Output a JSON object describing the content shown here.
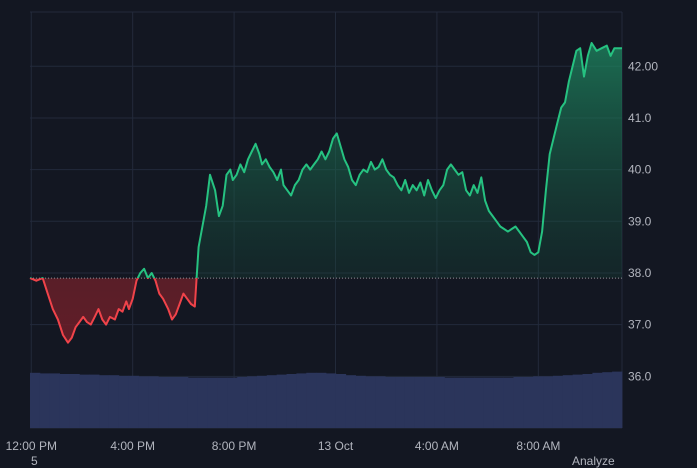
{
  "chart_data": {
    "type": "area",
    "baseline": 37.9,
    "ylim": [
      35.0,
      43.05
    ],
    "y_ticks": [
      "42.00",
      "41.0",
      "40.0",
      "39.0",
      "38.0",
      "37.0",
      "36.0"
    ],
    "y_tick_values": [
      42.0,
      41.0,
      40.0,
      39.0,
      38.0,
      37.0,
      36.0
    ],
    "x_ticks": [
      "12:00 PM",
      "4:00 PM",
      "8:00 PM",
      "13 Oct",
      "4:00 AM",
      "8:00 AM"
    ],
    "x_tick_hours": [
      12,
      16,
      20,
      24,
      28,
      32
    ],
    "x_range_hours": [
      11.95,
      35.3
    ],
    "series": [
      {
        "values": [
          [
            11.95,
            37.9
          ],
          [
            12.2,
            37.85
          ],
          [
            12.45,
            37.9
          ],
          [
            12.65,
            37.6
          ],
          [
            12.85,
            37.3
          ],
          [
            13.05,
            37.1
          ],
          [
            13.25,
            36.8
          ],
          [
            13.45,
            36.65
          ],
          [
            13.6,
            36.75
          ],
          [
            13.75,
            36.95
          ],
          [
            13.9,
            37.05
          ],
          [
            14.05,
            37.15
          ],
          [
            14.2,
            37.05
          ],
          [
            14.35,
            37.0
          ],
          [
            14.5,
            37.15
          ],
          [
            14.65,
            37.3
          ],
          [
            14.8,
            37.1
          ],
          [
            14.95,
            37.0
          ],
          [
            15.1,
            37.15
          ],
          [
            15.3,
            37.1
          ],
          [
            15.45,
            37.3
          ],
          [
            15.6,
            37.25
          ],
          [
            15.75,
            37.45
          ],
          [
            15.85,
            37.3
          ],
          [
            16.0,
            37.5
          ],
          [
            16.15,
            37.85
          ],
          [
            16.3,
            38.0
          ],
          [
            16.45,
            38.08
          ],
          [
            16.6,
            37.9
          ],
          [
            16.75,
            38.0
          ],
          [
            16.9,
            37.85
          ],
          [
            17.05,
            37.6
          ],
          [
            17.2,
            37.5
          ],
          [
            17.4,
            37.3
          ],
          [
            17.55,
            37.1
          ],
          [
            17.7,
            37.2
          ],
          [
            17.85,
            37.4
          ],
          [
            18.0,
            37.6
          ],
          [
            18.15,
            37.5
          ],
          [
            18.3,
            37.4
          ],
          [
            18.45,
            37.35
          ],
          [
            18.52,
            37.9
          ],
          [
            18.6,
            38.5
          ],
          [
            18.75,
            38.9
          ],
          [
            18.9,
            39.3
          ],
          [
            19.05,
            39.9
          ],
          [
            19.25,
            39.6
          ],
          [
            19.4,
            39.1
          ],
          [
            19.55,
            39.3
          ],
          [
            19.7,
            39.9
          ],
          [
            19.85,
            40.0
          ],
          [
            19.95,
            39.8
          ],
          [
            20.1,
            39.9
          ],
          [
            20.25,
            40.1
          ],
          [
            20.4,
            39.95
          ],
          [
            20.55,
            40.2
          ],
          [
            20.7,
            40.35
          ],
          [
            20.85,
            40.5
          ],
          [
            21.0,
            40.3
          ],
          [
            21.1,
            40.1
          ],
          [
            21.25,
            40.2
          ],
          [
            21.4,
            40.05
          ],
          [
            21.55,
            39.95
          ],
          [
            21.7,
            39.8
          ],
          [
            21.85,
            40.0
          ],
          [
            21.95,
            39.7
          ],
          [
            22.1,
            39.6
          ],
          [
            22.25,
            39.5
          ],
          [
            22.4,
            39.7
          ],
          [
            22.55,
            39.8
          ],
          [
            22.7,
            40.0
          ],
          [
            22.85,
            40.1
          ],
          [
            23.0,
            40.0
          ],
          [
            23.15,
            40.1
          ],
          [
            23.3,
            40.2
          ],
          [
            23.45,
            40.35
          ],
          [
            23.6,
            40.2
          ],
          [
            23.75,
            40.35
          ],
          [
            23.9,
            40.6
          ],
          [
            24.05,
            40.7
          ],
          [
            24.2,
            40.45
          ],
          [
            24.35,
            40.2
          ],
          [
            24.5,
            40.05
          ],
          [
            24.65,
            39.8
          ],
          [
            24.8,
            39.7
          ],
          [
            24.95,
            39.9
          ],
          [
            25.1,
            40.0
          ],
          [
            25.25,
            39.95
          ],
          [
            25.4,
            40.15
          ],
          [
            25.55,
            40.0
          ],
          [
            25.7,
            40.05
          ],
          [
            25.85,
            40.2
          ],
          [
            26.0,
            40.0
          ],
          [
            26.15,
            39.9
          ],
          [
            26.3,
            39.85
          ],
          [
            26.45,
            39.7
          ],
          [
            26.6,
            39.6
          ],
          [
            26.75,
            39.8
          ],
          [
            26.9,
            39.55
          ],
          [
            27.05,
            39.7
          ],
          [
            27.2,
            39.6
          ],
          [
            27.35,
            39.75
          ],
          [
            27.5,
            39.5
          ],
          [
            27.65,
            39.8
          ],
          [
            27.8,
            39.6
          ],
          [
            27.95,
            39.45
          ],
          [
            28.1,
            39.6
          ],
          [
            28.25,
            39.7
          ],
          [
            28.4,
            40.0
          ],
          [
            28.55,
            40.1
          ],
          [
            28.7,
            40.0
          ],
          [
            28.85,
            39.9
          ],
          [
            29.0,
            39.95
          ],
          [
            29.15,
            39.6
          ],
          [
            29.3,
            39.5
          ],
          [
            29.45,
            39.7
          ],
          [
            29.6,
            39.55
          ],
          [
            29.75,
            39.85
          ],
          [
            29.9,
            39.4
          ],
          [
            30.05,
            39.2
          ],
          [
            30.2,
            39.1
          ],
          [
            30.35,
            39.0
          ],
          [
            30.5,
            38.9
          ],
          [
            30.65,
            38.85
          ],
          [
            30.8,
            38.8
          ],
          [
            30.95,
            38.85
          ],
          [
            31.1,
            38.9
          ],
          [
            31.25,
            38.8
          ],
          [
            31.4,
            38.7
          ],
          [
            31.55,
            38.6
          ],
          [
            31.7,
            38.4
          ],
          [
            31.85,
            38.35
          ],
          [
            32.0,
            38.4
          ],
          [
            32.15,
            38.8
          ],
          [
            32.3,
            39.6
          ],
          [
            32.45,
            40.3
          ],
          [
            32.6,
            40.6
          ],
          [
            32.75,
            40.9
          ],
          [
            32.9,
            41.2
          ],
          [
            33.05,
            41.3
          ],
          [
            33.2,
            41.7
          ],
          [
            33.35,
            42.0
          ],
          [
            33.5,
            42.3
          ],
          [
            33.65,
            42.35
          ],
          [
            33.8,
            41.8
          ],
          [
            33.95,
            42.2
          ],
          [
            34.1,
            42.45
          ],
          [
            34.3,
            42.3
          ],
          [
            34.5,
            42.35
          ],
          [
            34.7,
            42.4
          ],
          [
            34.85,
            42.2
          ],
          [
            35.0,
            42.35
          ],
          [
            35.3,
            42.35
          ]
        ]
      }
    ],
    "volume": "relative",
    "volume_values": [
      0.92,
      0.91,
      0.91,
      0.9,
      0.9,
      0.89,
      0.89,
      0.88,
      0.88,
      0.87,
      0.87,
      0.86,
      0.86,
      0.85,
      0.85,
      0.85,
      0.84,
      0.84,
      0.84,
      0.84,
      0.84,
      0.85,
      0.86,
      0.87,
      0.88,
      0.89,
      0.9,
      0.91,
      0.92,
      0.92,
      0.91,
      0.9,
      0.88,
      0.87,
      0.86,
      0.86,
      0.85,
      0.85,
      0.85,
      0.85,
      0.85,
      0.85,
      0.84,
      0.84,
      0.84,
      0.84,
      0.84,
      0.84,
      0.84,
      0.85,
      0.85,
      0.86,
      0.86,
      0.87,
      0.88,
      0.89,
      0.9,
      0.92,
      0.93,
      0.94
    ],
    "colors": {
      "background": "#131722",
      "grid": "#232a3b",
      "up_line": "#26c281",
      "down_line": "#f0434a",
      "up_fill": "#1b6b4f",
      "down_fill": "#7a2630",
      "baseline": "#8e9199",
      "volume": "#2b355b",
      "text": "#b2b5be"
    }
  },
  "footer": {
    "left_fragment": "5",
    "analyze": "Analyze"
  }
}
